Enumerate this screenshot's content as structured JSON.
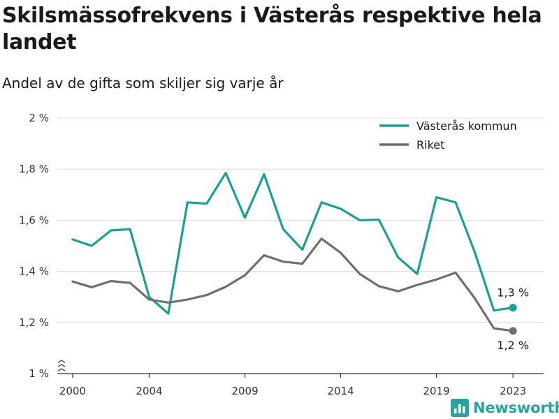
{
  "header": {
    "title": "Skilsmässofrekvens i Västerås respektive hela landet",
    "subtitle": "Andel av de gifta som skiljer sig varje år"
  },
  "brand": {
    "name": "Newsworthy",
    "icon": "bar-chart-logo-icon"
  },
  "chart_data": {
    "type": "line",
    "title": "Skilsmässofrekvens i Västerås respektive hela landet",
    "subtitle": "Andel av de gifta som skiljer sig varje år",
    "x": [
      2000,
      2001,
      2002,
      2003,
      2004,
      2005,
      2006,
      2007,
      2008,
      2009,
      2010,
      2011,
      2012,
      2013,
      2014,
      2015,
      2016,
      2017,
      2018,
      2019,
      2020,
      2021,
      2022,
      2023
    ],
    "x_ticks": [
      2000,
      2004,
      2009,
      2014,
      2019,
      2023
    ],
    "x_tick_labels": [
      "2000",
      "2004",
      "2009",
      "2014",
      "2019",
      "2023"
    ],
    "xlim": [
      1999.2,
      2024.6
    ],
    "ylim": [
      1.0,
      2.0
    ],
    "y_ticks": [
      1.0,
      1.2,
      1.4,
      1.6,
      1.8,
      2.0
    ],
    "y_tick_labels": [
      "1 %",
      "1,2 %",
      "1,4 %",
      "1,6 %",
      "1,8 %",
      "2 %"
    ],
    "y_axis_break": true,
    "grid": true,
    "legend_position": "top-right",
    "series": [
      {
        "name": "Västerås kommun",
        "color": "#1aa094",
        "values": [
          1.525,
          1.5,
          1.56,
          1.565,
          1.3,
          1.235,
          1.67,
          1.665,
          1.785,
          1.61,
          1.78,
          1.565,
          1.485,
          1.67,
          1.645,
          1.6,
          1.602,
          1.455,
          1.39,
          1.69,
          1.67,
          1.475,
          1.247,
          1.258
        ],
        "end_label": "1,3 %"
      },
      {
        "name": "Riket",
        "color": "#6f6e73",
        "values": [
          1.36,
          1.338,
          1.362,
          1.355,
          1.29,
          1.278,
          1.29,
          1.307,
          1.34,
          1.385,
          1.463,
          1.438,
          1.43,
          1.528,
          1.473,
          1.39,
          1.342,
          1.322,
          1.347,
          1.368,
          1.395,
          1.295,
          1.177,
          1.167
        ],
        "end_label": "1,2 %"
      }
    ]
  }
}
